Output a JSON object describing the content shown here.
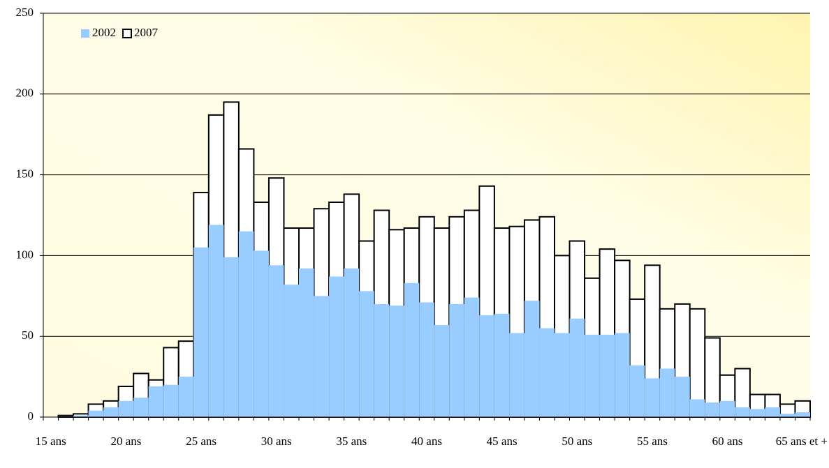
{
  "chart_data": {
    "type": "bar",
    "categories": [
      "15 ans",
      null,
      null,
      null,
      null,
      "20 ans",
      null,
      null,
      null,
      null,
      "25 ans",
      null,
      null,
      null,
      null,
      "30 ans",
      null,
      null,
      null,
      null,
      "35 ans",
      null,
      null,
      null,
      null,
      "40 ans",
      null,
      null,
      null,
      null,
      "45 ans",
      null,
      null,
      null,
      null,
      "50 ans",
      null,
      null,
      null,
      null,
      "55 ans",
      null,
      null,
      null,
      null,
      "60 ans",
      null,
      null,
      null,
      null,
      "65 ans et +"
    ],
    "series": [
      {
        "name": "2002",
        "color": "#99ccff",
        "values": [
          0,
          0,
          1,
          4,
          6,
          10,
          12,
          19,
          20,
          25,
          105,
          119,
          99,
          115,
          103,
          94,
          82,
          92,
          75,
          87,
          92,
          78,
          70,
          69,
          83,
          71,
          57,
          70,
          74,
          63,
          64,
          52,
          72,
          55,
          52,
          61,
          51,
          51,
          52,
          32,
          24,
          30,
          25,
          11,
          9,
          10,
          6,
          5,
          6,
          2,
          3
        ]
      },
      {
        "name": "2007",
        "color": "#ffffff",
        "values": [
          0,
          1,
          2,
          8,
          10,
          19,
          27,
          23,
          43,
          47,
          139,
          187,
          195,
          166,
          133,
          148,
          117,
          117,
          129,
          133,
          138,
          109,
          128,
          116,
          117,
          124,
          117,
          124,
          128,
          143,
          117,
          118,
          122,
          124,
          100,
          109,
          86,
          104,
          97,
          73,
          94,
          67,
          70,
          67,
          49,
          26,
          30,
          14,
          14,
          8,
          10
        ]
      }
    ],
    "ylim": [
      0,
      250
    ],
    "yticks": [
      0,
      50,
      100,
      150,
      200,
      250
    ],
    "grid": true,
    "legend": "top-left"
  }
}
